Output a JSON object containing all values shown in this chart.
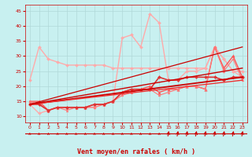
{
  "bg_color": "#c8f0f0",
  "grid_color": "#b0d8d8",
  "xlabel": "Vent moyen/en rafales ( km/h )",
  "xlim": [
    -0.5,
    23.5
  ],
  "ylim": [
    8,
    47
  ],
  "yticks": [
    10,
    15,
    20,
    25,
    30,
    35,
    40,
    45
  ],
  "xticks": [
    0,
    1,
    2,
    3,
    4,
    5,
    6,
    7,
    8,
    9,
    10,
    11,
    12,
    13,
    14,
    15,
    16,
    17,
    18,
    19,
    20,
    21,
    22,
    23
  ],
  "lines": [
    {
      "x": [
        0,
        1,
        2,
        3,
        4,
        5,
        6,
        7,
        8,
        9,
        10,
        11,
        12,
        13,
        14,
        15,
        16,
        17,
        18,
        19,
        20,
        21,
        22,
        23
      ],
      "y": [
        22,
        33,
        29,
        28,
        27,
        27,
        27,
        27,
        27,
        26,
        26,
        26,
        26,
        26,
        26,
        26,
        26,
        26,
        26,
        26,
        33,
        29,
        25,
        25
      ],
      "color": "#ffaaaa",
      "marker": "D",
      "markersize": 2.0,
      "linewidth": 1.0,
      "zorder": 2
    },
    {
      "x": [
        0,
        1,
        2,
        3,
        4,
        5,
        6,
        7,
        8,
        9,
        10,
        11,
        12,
        13,
        14,
        15,
        16,
        17,
        18,
        19,
        20,
        21,
        22,
        23
      ],
      "y": [
        14,
        11,
        12,
        13,
        13,
        13,
        13,
        13,
        14,
        15,
        36,
        37,
        33,
        44,
        41,
        22,
        22,
        25,
        25,
        26,
        33,
        29,
        25,
        23
      ],
      "color": "#ffaaaa",
      "marker": "D",
      "markersize": 2.0,
      "linewidth": 1.0,
      "zorder": 2
    },
    {
      "x": [
        0,
        1,
        2,
        3,
        4,
        5,
        6,
        7,
        8,
        9,
        10,
        11,
        12,
        13,
        14,
        15,
        16,
        17,
        18,
        19,
        20,
        21,
        22,
        23
      ],
      "y": [
        14,
        14,
        12,
        13,
        13,
        13,
        13,
        14,
        14,
        15,
        18,
        19,
        19,
        19,
        23,
        22,
        22,
        23,
        23,
        23,
        23,
        22,
        23,
        23
      ],
      "color": "#dd3333",
      "marker": "D",
      "markersize": 2.0,
      "linewidth": 1.2,
      "zorder": 4
    },
    {
      "x": [
        0,
        1,
        2,
        3,
        4,
        5,
        6,
        7,
        8,
        9,
        10,
        11,
        12,
        13,
        14,
        15,
        16,
        17,
        18,
        19,
        20,
        21,
        22,
        23
      ],
      "y": [
        15,
        15,
        12,
        13,
        13,
        13,
        13,
        14,
        14,
        15,
        18,
        19,
        19,
        20,
        18,
        19,
        19,
        20,
        20,
        19,
        33,
        26,
        30,
        23
      ],
      "color": "#ff5555",
      "marker": "^",
      "markersize": 2.5,
      "linewidth": 1.0,
      "zorder": 3
    },
    {
      "x": [
        0,
        1,
        2,
        3,
        4,
        5,
        6,
        7,
        8,
        9,
        10,
        11,
        12,
        13,
        14,
        15,
        16,
        17,
        18,
        19,
        20,
        21,
        22,
        23
      ],
      "y": [
        15,
        14,
        12,
        13,
        12,
        13,
        13,
        13,
        14,
        15,
        17,
        18,
        19,
        19,
        17,
        18,
        19,
        20,
        20,
        19,
        33,
        25,
        29,
        22
      ],
      "color": "#ff7777",
      "marker": "^",
      "markersize": 2.0,
      "linewidth": 0.8,
      "zorder": 3
    }
  ],
  "diag_lines": [
    {
      "x": [
        0,
        23
      ],
      "y": [
        14,
        23
      ],
      "color": "#cc0000",
      "linewidth": 1.3,
      "zorder": 5
    },
    {
      "x": [
        0,
        23
      ],
      "y": [
        14,
        22
      ],
      "color": "#ee3333",
      "linewidth": 1.0,
      "zorder": 5
    },
    {
      "x": [
        0,
        23
      ],
      "y": [
        14,
        26
      ],
      "color": "#cc0000",
      "linewidth": 1.0,
      "zorder": 5
    },
    {
      "x": [
        0,
        23
      ],
      "y": [
        14,
        33
      ],
      "color": "#cc0000",
      "linewidth": 0.9,
      "zorder": 4
    }
  ],
  "windbarb_color": "#cc0000",
  "windbarb_y": 8.8,
  "xlabel_color": "#cc0000",
  "tick_color": "#cc0000",
  "spine_color": "#cc0000",
  "barb_line_color": "#cc0000"
}
